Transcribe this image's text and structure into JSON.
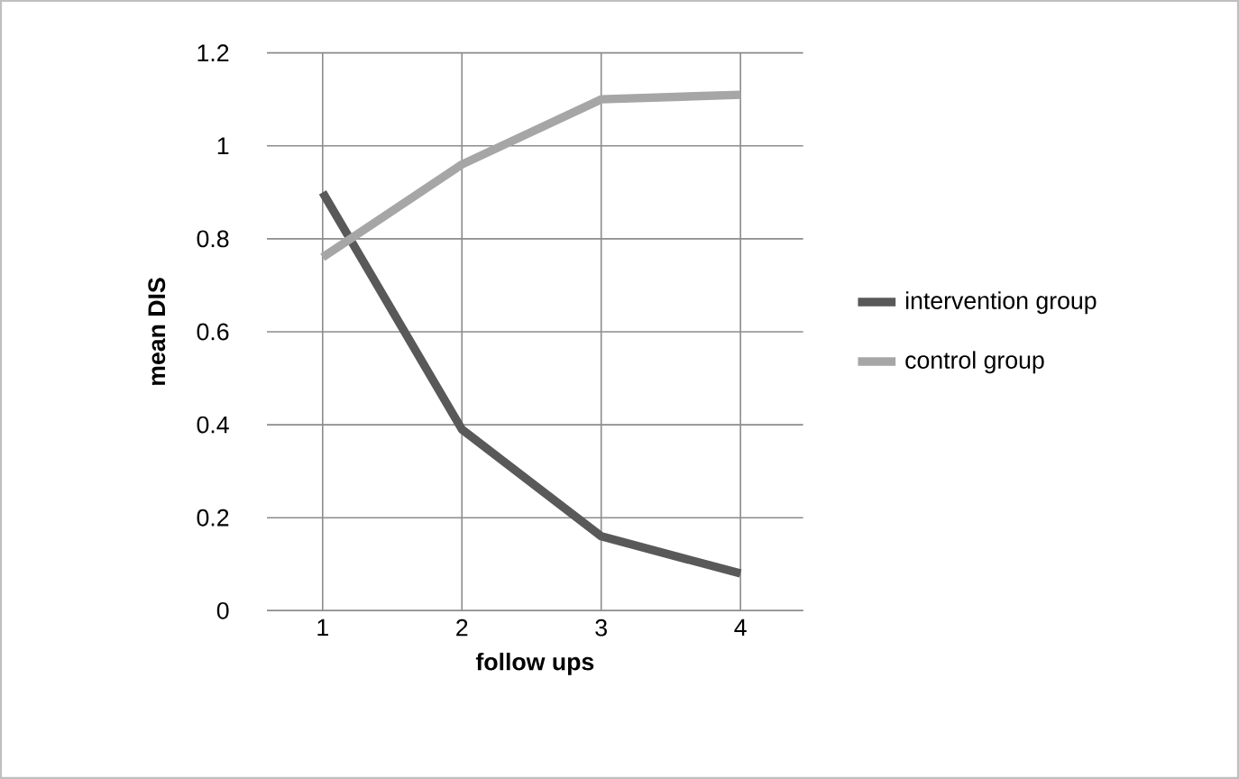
{
  "chart_data": {
    "type": "line",
    "xlabel": "follow ups",
    "ylabel": "mean DIS",
    "categories": [
      "1",
      "2",
      "3",
      "4"
    ],
    "series": [
      {
        "name": "intervention group",
        "color": "#595959",
        "values": [
          0.9,
          0.39,
          0.16,
          0.08
        ]
      },
      {
        "name": "control group",
        "color": "#a6a6a6",
        "values": [
          0.76,
          0.96,
          1.1,
          1.11
        ]
      }
    ],
    "ylim": [
      0,
      1.2
    ],
    "yticks": [
      0,
      0.2,
      0.4,
      0.6,
      0.8,
      1,
      1.2
    ],
    "grid": true,
    "legend": "right",
    "marker": "none",
    "line_style": "solid"
  }
}
